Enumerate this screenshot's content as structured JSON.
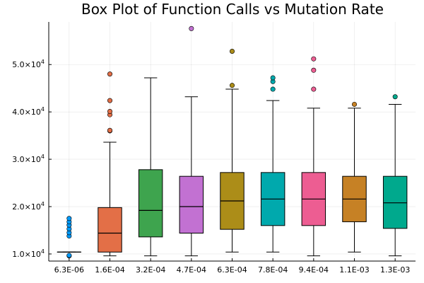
{
  "chart_data": {
    "type": "boxplot",
    "title": "Box Plot of Function Calls vs Mutation Rate",
    "xlabel": "",
    "ylabel": "",
    "categories": [
      "6.3E-06",
      "1.6E-04",
      "3.2E-04",
      "4.7E-04",
      "6.3E-04",
      "7.8E-04",
      "9.4E-04",
      "1.1E-03",
      "1.3E-03"
    ],
    "ylim": [
      8500,
      59000
    ],
    "yticks": [
      10000,
      20000,
      30000,
      40000,
      50000
    ],
    "ytick_labels": [
      {
        "mantissa": "1.0",
        "exponent": "4"
      },
      {
        "mantissa": "2.0",
        "exponent": "4"
      },
      {
        "mantissa": "3.0",
        "exponent": "4"
      },
      {
        "mantissa": "4.0",
        "exponent": "4"
      },
      {
        "mantissa": "5.0",
        "exponent": "4"
      }
    ],
    "grid": true,
    "legend": "none",
    "series": [
      {
        "category": "6.3E-06",
        "color": "#009AFA",
        "whisker_low": 10400,
        "q1": 10400,
        "median": 10400,
        "q3": 10400,
        "whisker_high": 10400,
        "outliers": [
          9600,
          9700,
          13800,
          14500,
          15300,
          16100,
          16800,
          17500
        ]
      },
      {
        "category": "1.6E-04",
        "color": "#E36F47",
        "whisker_low": 9600,
        "q1": 10400,
        "median": 14400,
        "q3": 19800,
        "whisker_high": 33600,
        "outliers": [
          36000,
          36100,
          39400,
          40100,
          42400,
          48000
        ]
      },
      {
        "category": "3.2E-04",
        "color": "#3EA44E",
        "whisker_low": 9600,
        "q1": 13600,
        "median": 19200,
        "q3": 27800,
        "whisker_high": 47200,
        "outliers": []
      },
      {
        "category": "4.7E-04",
        "color": "#C271D2",
        "whisker_low": 9600,
        "q1": 14400,
        "median": 20000,
        "q3": 26400,
        "whisker_high": 43200,
        "outliers": [
          57600
        ]
      },
      {
        "category": "6.3E-04",
        "color": "#AC8D18",
        "whisker_low": 10400,
        "q1": 15200,
        "median": 21200,
        "q3": 27200,
        "whisker_high": 44800,
        "outliers": [
          45600,
          52800
        ]
      },
      {
        "category": "7.8E-04",
        "color": "#00A9AD",
        "whisker_low": 10400,
        "q1": 16000,
        "median": 21600,
        "q3": 27200,
        "whisker_high": 42400,
        "outliers": [
          44800,
          46400,
          47200
        ]
      },
      {
        "category": "9.4E-04",
        "color": "#ED5D92",
        "whisker_low": 9600,
        "q1": 16000,
        "median": 21600,
        "q3": 27200,
        "whisker_high": 40800,
        "outliers": [
          44800,
          48800,
          51200
        ]
      },
      {
        "category": "1.1E-03",
        "color": "#C68125",
        "whisker_low": 10400,
        "q1": 16800,
        "median": 21600,
        "q3": 26400,
        "whisker_high": 40800,
        "outliers": [
          41600
        ]
      },
      {
        "category": "1.3E-03",
        "color": "#00A98D",
        "whisker_low": 9600,
        "q1": 15400,
        "median": 20800,
        "q3": 26400,
        "whisker_high": 41600,
        "outliers": [
          43200
        ]
      }
    ]
  }
}
